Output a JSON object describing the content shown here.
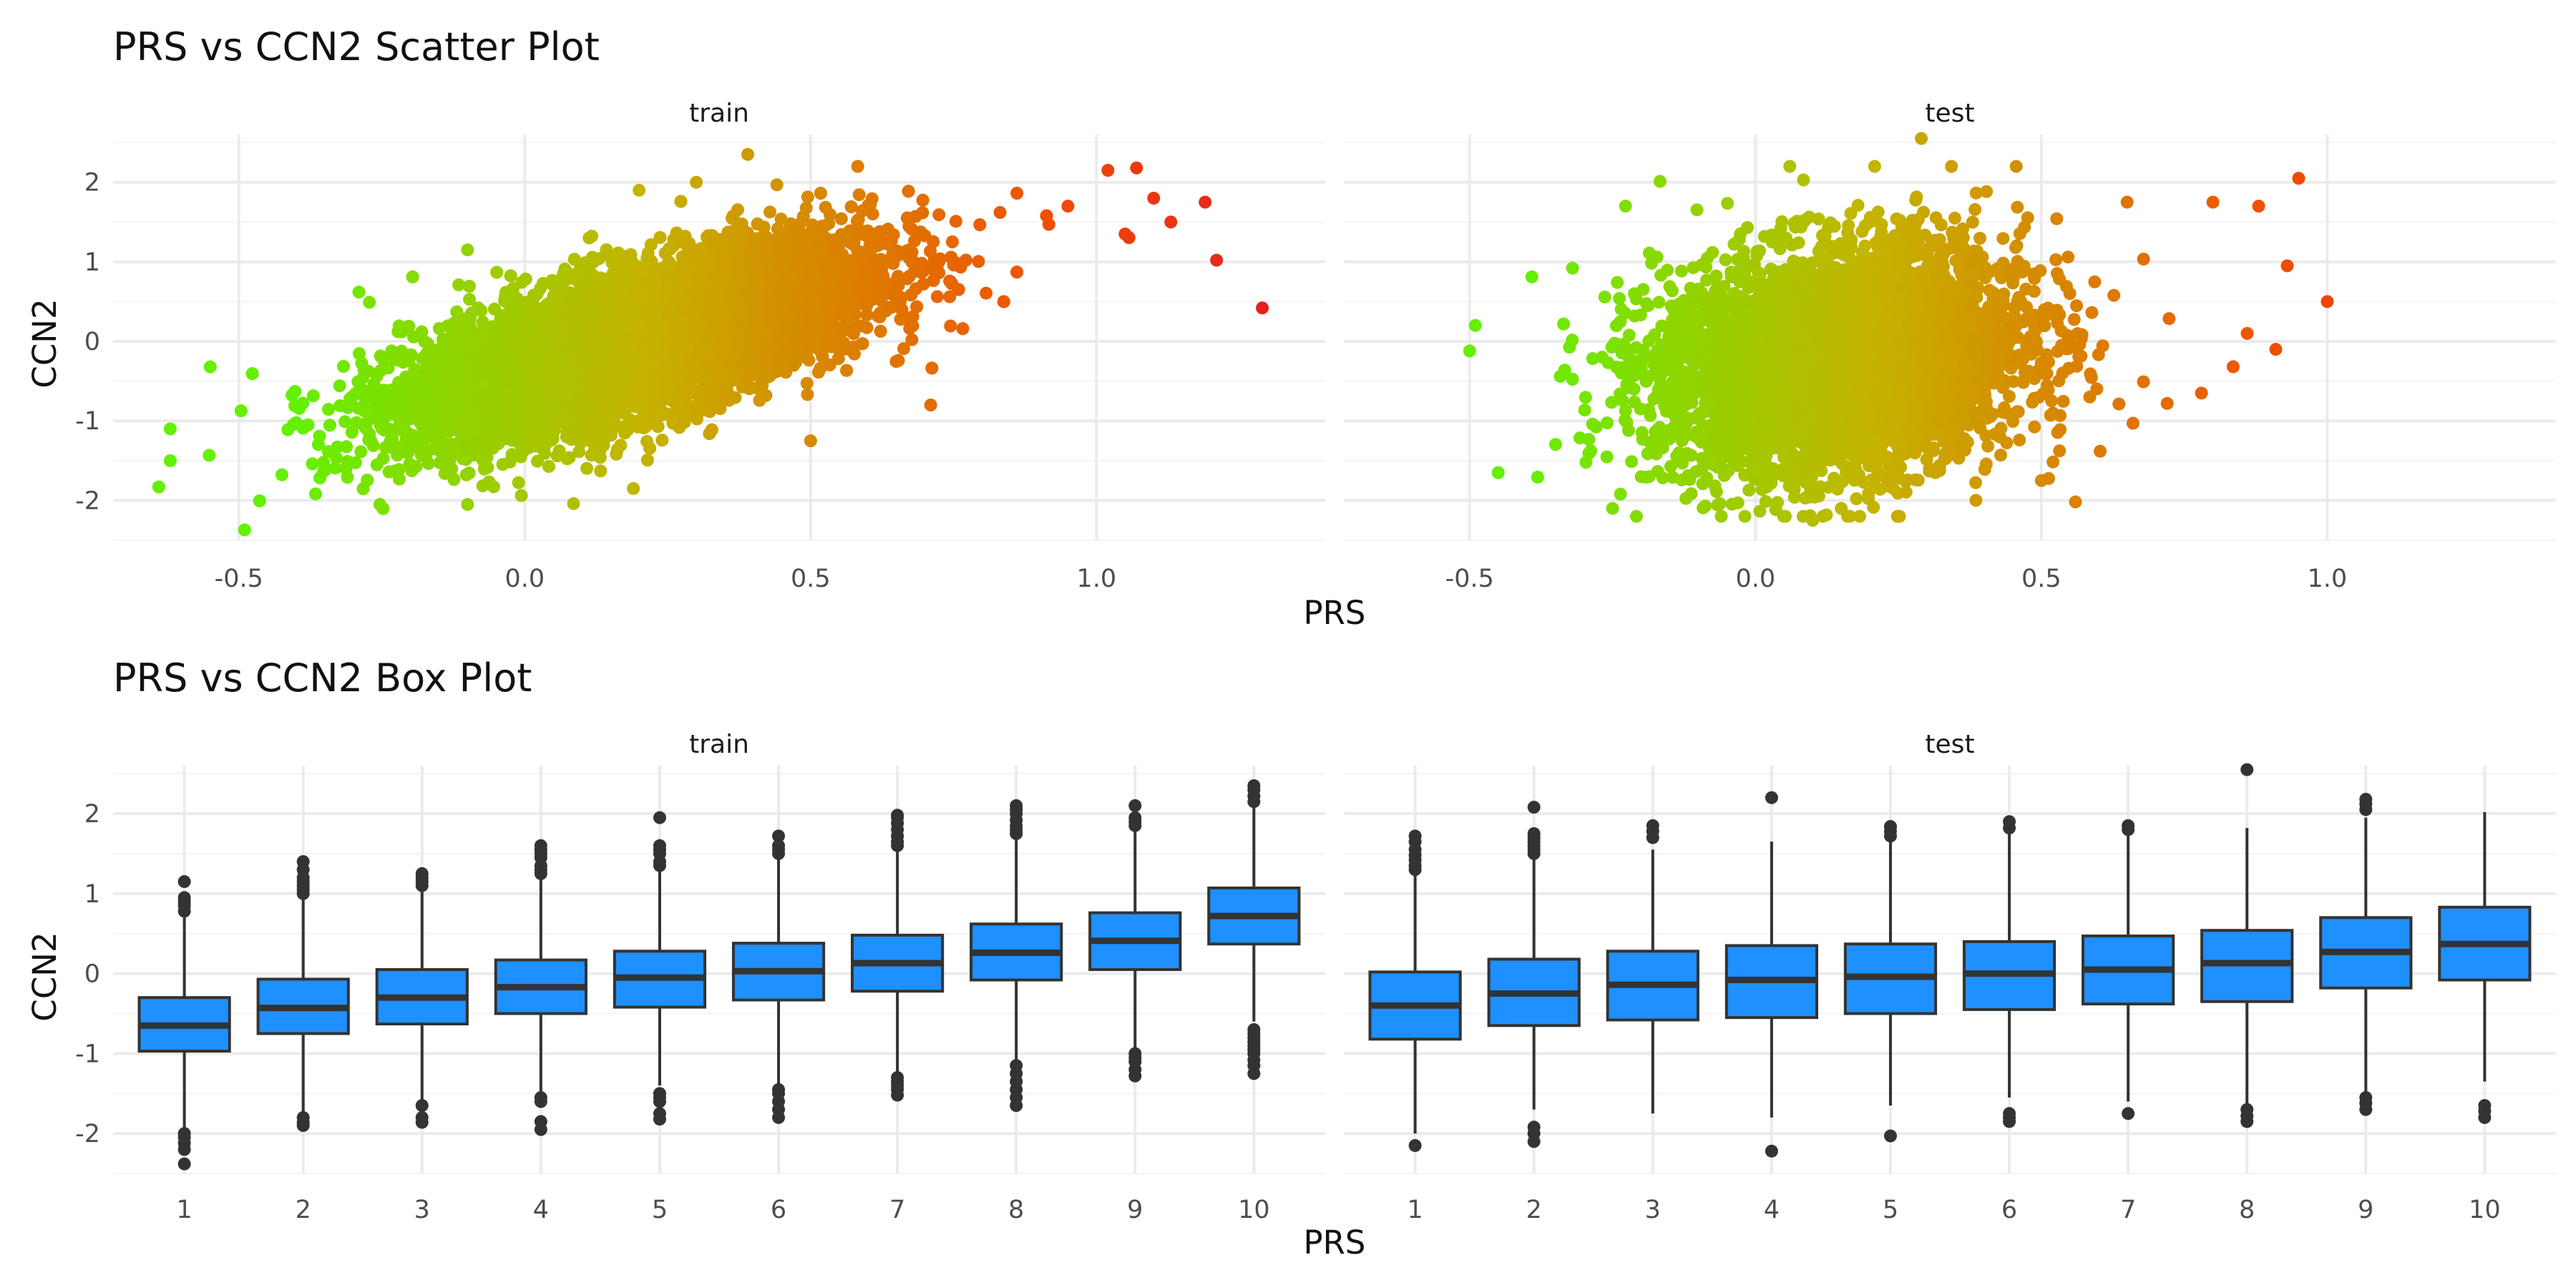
{
  "colors": {
    "low": "#64f000",
    "mid": "#c4b400",
    "high": "#f05000",
    "top": "#e51f1f",
    "box_fill": "#1e90ff",
    "box_line": "#333333",
    "outlier": "#333333",
    "grid": "#ebebeb"
  },
  "chart_data": [
    {
      "type": "scatter",
      "title": "PRS vs CCN2 Scatter Plot",
      "xlabel": "PRS",
      "ylabel": "CCN2",
      "grid": true,
      "legend": "none",
      "panels": [
        {
          "name": "train",
          "xlim": [
            -0.72,
            1.4
          ],
          "ylim": [
            -2.5,
            2.6
          ],
          "xticks": [
            -0.5,
            0.0,
            0.5,
            1.0
          ],
          "xtick_labels": [
            "-0.5",
            "0.0",
            "0.5",
            "1.0"
          ],
          "yticks": [
            -2,
            -1,
            0,
            1,
            2
          ],
          "ytick_labels": [
            "-2",
            "-1",
            "0",
            "1",
            "2"
          ],
          "cloud": {
            "n_points": 10000,
            "x_mean": 0.2,
            "x_sd": 0.2,
            "slope": 2.0,
            "intercept": -0.4,
            "resid_sd": 0.45
          },
          "points": [
            {
              "x": -0.64,
              "y": -1.83
            },
            {
              "x": -0.62,
              "y": -1.1
            },
            {
              "x": -0.62,
              "y": -1.5
            },
            {
              "x": -0.55,
              "y": -0.32
            },
            {
              "x": -0.49,
              "y": -2.37
            },
            {
              "x": -0.1,
              "y": 1.15
            },
            {
              "x": 0.39,
              "y": 2.35
            },
            {
              "x": 0.71,
              "y": -0.8
            },
            {
              "x": 0.95,
              "y": 1.7
            },
            {
              "x": 1.02,
              "y": 2.15
            },
            {
              "x": 1.05,
              "y": 1.35
            },
            {
              "x": 1.07,
              "y": 2.18
            },
            {
              "x": 1.1,
              "y": 1.8
            },
            {
              "x": 1.13,
              "y": 1.5
            },
            {
              "x": 1.19,
              "y": 1.75
            },
            {
              "x": 1.21,
              "y": 1.02
            },
            {
              "x": 1.29,
              "y": 0.42
            },
            {
              "x": 0.3,
              "y": 2.0
            },
            {
              "x": 0.2,
              "y": 1.9
            },
            {
              "x": -0.29,
              "y": 0.62
            },
            {
              "x": -0.1,
              "y": -2.05
            },
            {
              "x": 0.19,
              "y": -1.85
            },
            {
              "x": 0.5,
              "y": -1.25
            }
          ]
        },
        {
          "name": "test",
          "xlim": [
            -0.72,
            1.4
          ],
          "ylim": [
            -2.5,
            2.6
          ],
          "xticks": [
            -0.5,
            0.0,
            0.5,
            1.0
          ],
          "xtick_labels": [
            "-0.5",
            "0.0",
            "0.5",
            "1.0"
          ],
          "yticks": [
            -2,
            -1,
            0,
            1,
            2
          ],
          "ytick_labels": [
            "-2",
            "-1",
            "0",
            "1",
            "2"
          ],
          "cloud": {
            "n_points": 4500,
            "x_mean": 0.15,
            "x_sd": 0.16,
            "slope": 0.8,
            "intercept": -0.35,
            "resid_sd": 0.7
          },
          "points": [
            {
              "x": -0.5,
              "y": -0.12
            },
            {
              "x": -0.49,
              "y": 0.2
            },
            {
              "x": -0.45,
              "y": -1.65
            },
            {
              "x": -0.32,
              "y": 0.92
            },
            {
              "x": -0.25,
              "y": -2.1
            },
            {
              "x": 0.1,
              "y": -2.25
            },
            {
              "x": 0.06,
              "y": 2.2
            },
            {
              "x": 0.29,
              "y": 2.55
            },
            {
              "x": 0.15,
              "y": -2.1
            },
            {
              "x": 0.5,
              "y": -1.75
            },
            {
              "x": 0.8,
              "y": 1.75
            },
            {
              "x": 0.86,
              "y": 0.1
            },
            {
              "x": 0.91,
              "y": -0.1
            },
            {
              "x": 0.95,
              "y": 2.05
            },
            {
              "x": 0.88,
              "y": 1.7
            },
            {
              "x": 1.0,
              "y": 0.5
            },
            {
              "x": 0.72,
              "y": -0.78
            },
            {
              "x": 0.78,
              "y": -0.65
            },
            {
              "x": 0.65,
              "y": 1.75
            },
            {
              "x": 0.93,
              "y": 0.95
            }
          ]
        }
      ]
    },
    {
      "type": "box",
      "title": "PRS vs CCN2 Box Plot",
      "xlabel": "PRS",
      "ylabel": "CCN2",
      "grid": true,
      "legend": "none",
      "categories": [
        "1",
        "2",
        "3",
        "4",
        "5",
        "6",
        "7",
        "8",
        "9",
        "10"
      ],
      "ylim": [
        -2.5,
        2.6
      ],
      "yticks": [
        -2,
        -1,
        0,
        1,
        2
      ],
      "ytick_labels": [
        "-2",
        "-1",
        "0",
        "1",
        "2"
      ],
      "panels": [
        {
          "name": "train",
          "boxes": [
            {
              "category": "1",
              "q1": -0.97,
              "median": -0.65,
              "q3": -0.3,
              "lower": -1.95,
              "upper": 0.7,
              "outliers": [
                0.78,
                0.85,
                0.9,
                0.95,
                1.15,
                -2.0,
                -2.05,
                -2.12,
                -2.2,
                -2.38
              ]
            },
            {
              "category": "2",
              "q1": -0.75,
              "median": -0.43,
              "q3": -0.07,
              "lower": -1.75,
              "upper": 0.95,
              "outliers": [
                1.0,
                1.05,
                1.1,
                1.15,
                1.2,
                1.3,
                1.4,
                -1.8,
                -1.86,
                -1.9
              ]
            },
            {
              "category": "3",
              "q1": -0.63,
              "median": -0.3,
              "q3": 0.05,
              "lower": -1.6,
              "upper": 1.05,
              "outliers": [
                1.1,
                1.15,
                1.2,
                1.25,
                -1.65,
                -1.8,
                -1.86
              ]
            },
            {
              "category": "4",
              "q1": -0.5,
              "median": -0.17,
              "q3": 0.17,
              "lower": -1.5,
              "upper": 1.2,
              "outliers": [
                1.25,
                1.3,
                1.35,
                1.45,
                1.5,
                1.55,
                1.6,
                -1.55,
                -1.6,
                -1.85,
                -1.95
              ]
            },
            {
              "category": "5",
              "q1": -0.42,
              "median": -0.05,
              "q3": 0.28,
              "lower": -1.4,
              "upper": 1.3,
              "outliers": [
                1.35,
                1.4,
                1.5,
                1.55,
                1.6,
                1.95,
                -1.5,
                -1.55,
                -1.6,
                -1.75,
                -1.82
              ]
            },
            {
              "category": "6",
              "q1": -0.33,
              "median": 0.03,
              "q3": 0.38,
              "lower": -1.4,
              "upper": 1.45,
              "outliers": [
                1.5,
                1.55,
                1.6,
                1.72,
                -1.45,
                -1.5,
                -1.6,
                -1.7,
                -1.8
              ]
            },
            {
              "category": "7",
              "q1": -0.22,
              "median": 0.13,
              "q3": 0.48,
              "lower": -1.25,
              "upper": 1.55,
              "outliers": [
                1.6,
                1.65,
                1.72,
                1.8,
                1.88,
                1.95,
                1.98,
                -1.3,
                -1.35,
                -1.4,
                -1.45,
                -1.52
              ]
            },
            {
              "category": "8",
              "q1": -0.08,
              "median": 0.26,
              "q3": 0.62,
              "lower": -1.1,
              "upper": 1.7,
              "outliers": [
                1.75,
                1.8,
                1.85,
                1.92,
                2.0,
                2.05,
                2.1,
                -1.15,
                -1.25,
                -1.35,
                -1.45,
                -1.55,
                -1.65
              ]
            },
            {
              "category": "9",
              "q1": 0.05,
              "median": 0.41,
              "q3": 0.76,
              "lower": -0.95,
              "upper": 1.8,
              "outliers": [
                1.85,
                1.9,
                1.95,
                2.1,
                -1.0,
                -1.05,
                -1.1,
                -1.2,
                -1.28
              ]
            },
            {
              "category": "10",
              "q1": 0.37,
              "median": 0.72,
              "q3": 1.07,
              "lower": -0.6,
              "upper": 2.1,
              "outliers": [
                2.15,
                2.22,
                2.3,
                2.35,
                -0.7,
                -0.75,
                -0.8,
                -0.85,
                -0.9,
                -0.95,
                -1.0,
                -1.08,
                -1.15,
                -1.25
              ]
            }
          ]
        },
        {
          "name": "test",
          "boxes": [
            {
              "category": "1",
              "q1": -0.82,
              "median": -0.4,
              "q3": 0.02,
              "lower": -2.0,
              "upper": 1.25,
              "outliers": [
                1.3,
                1.35,
                1.42,
                1.48,
                1.55,
                1.65,
                1.72,
                -2.15
              ]
            },
            {
              "category": "2",
              "q1": -0.65,
              "median": -0.25,
              "q3": 0.18,
              "lower": -1.7,
              "upper": 1.45,
              "outliers": [
                1.5,
                1.55,
                1.6,
                1.65,
                1.7,
                1.75,
                2.08,
                -1.92,
                -2.0,
                -2.1
              ]
            },
            {
              "category": "3",
              "q1": -0.58,
              "median": -0.14,
              "q3": 0.28,
              "lower": -1.75,
              "upper": 1.55,
              "outliers": [
                1.7,
                1.78,
                1.85
              ]
            },
            {
              "category": "4",
              "q1": -0.55,
              "median": -0.08,
              "q3": 0.35,
              "lower": -1.8,
              "upper": 1.65,
              "outliers": [
                2.2,
                -2.22
              ]
            },
            {
              "category": "5",
              "q1": -0.5,
              "median": -0.04,
              "q3": 0.37,
              "lower": -1.65,
              "upper": 1.65,
              "outliers": [
                1.72,
                1.78,
                1.84,
                -2.03
              ]
            },
            {
              "category": "6",
              "q1": -0.45,
              "median": 0.0,
              "q3": 0.4,
              "lower": -1.55,
              "upper": 1.75,
              "outliers": [
                1.82,
                1.9,
                -1.75,
                -1.8,
                -1.85
              ]
            },
            {
              "category": "7",
              "q1": -0.38,
              "median": 0.05,
              "q3": 0.47,
              "lower": -1.6,
              "upper": 1.75,
              "outliers": [
                1.8,
                1.85,
                -1.75
              ]
            },
            {
              "category": "8",
              "q1": -0.35,
              "median": 0.13,
              "q3": 0.54,
              "lower": -1.65,
              "upper": 1.82,
              "outliers": [
                2.55,
                -1.7,
                -1.78,
                -1.85
              ]
            },
            {
              "category": "9",
              "q1": -0.18,
              "median": 0.27,
              "q3": 0.7,
              "lower": -1.5,
              "upper": 1.95,
              "outliers": [
                2.05,
                2.12,
                2.18,
                -1.55,
                -1.62,
                -1.7
              ]
            },
            {
              "category": "10",
              "q1": -0.08,
              "median": 0.37,
              "q3": 0.83,
              "lower": -1.35,
              "upper": 2.02,
              "outliers": [
                -1.65,
                -1.72,
                -1.8
              ]
            }
          ]
        }
      ]
    }
  ]
}
